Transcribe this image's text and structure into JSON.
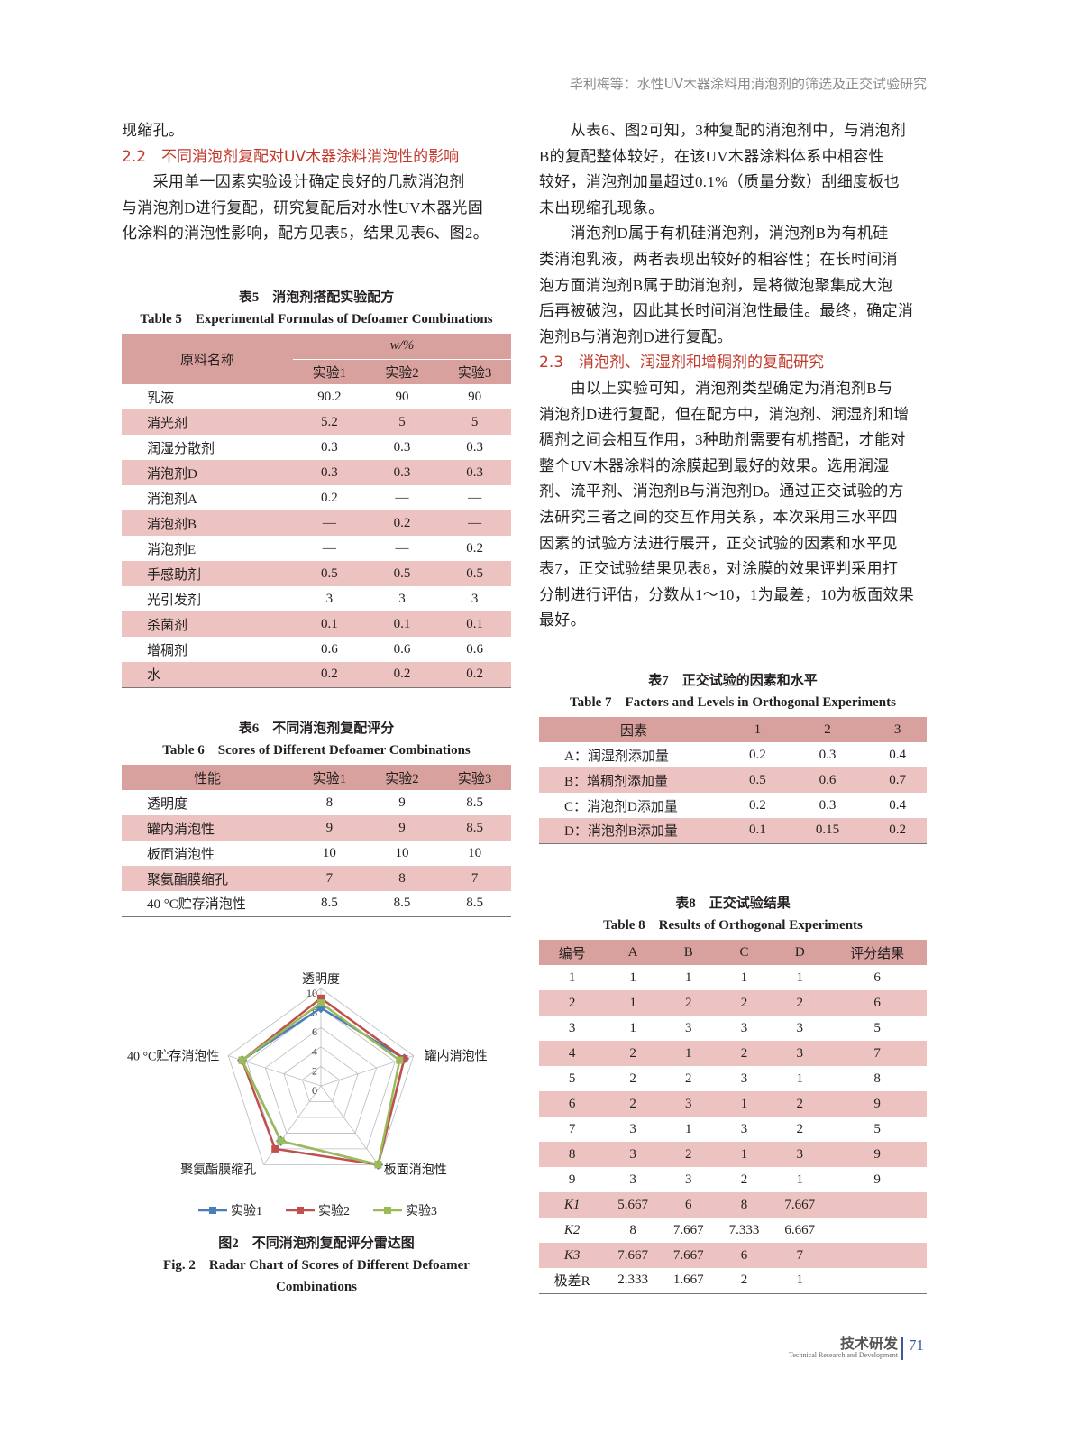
{
  "header": {
    "running_title": "毕利梅等：水性UV木器涂料用消泡剂的筛选及正交试验研究"
  },
  "left": {
    "intro_line": "现缩孔。",
    "section_2_2": "2.2　不同消泡剂复配对UV木器涂料消泡性的影响",
    "para1": [
      "　　采用单一因素实验设计确定良好的几款消泡剂",
      "与消泡剂D进行复配，研究复配后对水性UV木器光固",
      "化涂料的消泡性影响，配方见表5，结果见表6、图2。"
    ]
  },
  "table5": {
    "caption_cn": "表5　消泡剂搭配实验配方",
    "caption_en": "Table 5　Experimental Formulas of Defoamer Combinations",
    "col_name": "原料名称",
    "unit": "w/%",
    "cols": [
      "实验1",
      "实验2",
      "实验3"
    ],
    "rows": [
      [
        "乳液",
        "90.2",
        "90",
        "90"
      ],
      [
        "消光剂",
        "5.2",
        "5",
        "5"
      ],
      [
        "润湿分散剂",
        "0.3",
        "0.3",
        "0.3"
      ],
      [
        "消泡剂D",
        "0.3",
        "0.3",
        "0.3"
      ],
      [
        "消泡剂A",
        "0.2",
        "—",
        "—"
      ],
      [
        "消泡剂B",
        "—",
        "0.2",
        "—"
      ],
      [
        "消泡剂E",
        "—",
        "—",
        "0.2"
      ],
      [
        "手感助剂",
        "0.5",
        "0.5",
        "0.5"
      ],
      [
        "光引发剂",
        "3",
        "3",
        "3"
      ],
      [
        "杀菌剂",
        "0.1",
        "0.1",
        "0.1"
      ],
      [
        "增稠剂",
        "0.6",
        "0.6",
        "0.6"
      ],
      [
        "水",
        "0.2",
        "0.2",
        "0.2"
      ]
    ]
  },
  "table6": {
    "caption_cn": "表6　不同消泡剂复配评分",
    "caption_en": "Table 6　Scores of Different Defoamer Combinations",
    "head": [
      "性能",
      "实验1",
      "实验2",
      "实验3"
    ],
    "rows": [
      [
        "透明度",
        "8",
        "9",
        "8.5"
      ],
      [
        "罐内消泡性",
        "9",
        "9",
        "8.5"
      ],
      [
        "板面消泡性",
        "10",
        "10",
        "10"
      ],
      [
        "聚氨酯膜缩孔",
        "7",
        "8",
        "7"
      ],
      [
        "40 °C贮存消泡性",
        "8.5",
        "8.5",
        "8.5"
      ]
    ]
  },
  "chart_data": {
    "type": "radar",
    "axes": [
      "透明度",
      "罐内消泡性",
      "板面消泡性",
      "聚氨酯膜缩孔",
      "40 °C贮存消泡性"
    ],
    "ticks": [
      "0",
      "2",
      "4",
      "6",
      "8",
      "10"
    ],
    "range": [
      0,
      10
    ],
    "series": [
      {
        "name": "实验1",
        "values": [
          8,
          9,
          10,
          7,
          8.5
        ],
        "color": "#4a7ebb"
      },
      {
        "name": "实验2",
        "values": [
          9,
          9,
          10,
          8,
          8.5
        ],
        "color": "#c0504d"
      },
      {
        "name": "实验3",
        "values": [
          8.5,
          8.5,
          10,
          7,
          8.5
        ],
        "color": "#9bbb59"
      }
    ],
    "legend": "bottom",
    "caption_cn": "图2　不同消泡剂复配评分雷达图",
    "caption_en": "Fig. 2　Radar Chart of Scores of Different Defoamer Combinations"
  },
  "right": {
    "para1": [
      "　　从表6、图2可知，3种复配的消泡剂中，与消泡剂",
      "B的复配整体较好，在该UV木器涂料体系中相容性",
      "较好，消泡剂加量超过0.1%（质量分数）刮细度板也",
      "未出现缩孔现象。"
    ],
    "para2": [
      "　　消泡剂D属于有机硅消泡剂，消泡剂B为有机硅",
      "类消泡乳液，两者表现出较好的相容性；在长时间消",
      "泡方面消泡剂B属于助消泡剂，是将微泡聚集成大泡",
      "后再被破泡，因此其长时间消泡性最佳。最终，确定消",
      "泡剂B与消泡剂D进行复配。"
    ],
    "section_2_3": "2.3　消泡剂、润湿剂和增稠剂的复配研究",
    "para3": [
      "　　由以上实验可知，消泡剂类型确定为消泡剂B与",
      "消泡剂D进行复配，但在配方中，消泡剂、润湿剂和增",
      "稠剂之间会相互作用，3种助剂需要有机搭配，才能对",
      "整个UV木器涂料的涂膜起到最好的效果。选用润湿",
      "剂、流平剂、消泡剂B与消泡剂D。通过正交试验的方",
      "法研究三者之间的交互作用关系，本次采用三水平四",
      "因素的试验方法进行展开，正交试验的因素和水平见",
      "表7，正交试验结果见表8，对涂膜的效果评判采用打",
      "分制进行评估，分数从1～10，1为最差，10为板面效果",
      "最好。"
    ]
  },
  "table7": {
    "caption_cn": "表7　正交试验的因素和水平",
    "caption_en": "Table 7　Factors and Levels in Orthogonal Experiments",
    "head": [
      "因素",
      "1",
      "2",
      "3"
    ],
    "rows": [
      [
        "A：润湿剂添加量",
        "0.2",
        "0.3",
        "0.4"
      ],
      [
        "B：增稠剂添加量",
        "0.5",
        "0.6",
        "0.7"
      ],
      [
        "C：消泡剂D添加量",
        "0.2",
        "0.3",
        "0.4"
      ],
      [
        "D：消泡剂B添加量",
        "0.1",
        "0.15",
        "0.2"
      ]
    ]
  },
  "table8": {
    "caption_cn": "表8　正交试验结果",
    "caption_en": "Table 8　Results of Orthogonal Experiments",
    "head": [
      "编号",
      "A",
      "B",
      "C",
      "D",
      "评分结果"
    ],
    "rows": [
      [
        "1",
        "1",
        "1",
        "1",
        "1",
        "6"
      ],
      [
        "2",
        "1",
        "2",
        "2",
        "2",
        "6"
      ],
      [
        "3",
        "1",
        "3",
        "3",
        "3",
        "5"
      ],
      [
        "4",
        "2",
        "1",
        "2",
        "3",
        "7"
      ],
      [
        "5",
        "2",
        "2",
        "3",
        "1",
        "8"
      ],
      [
        "6",
        "2",
        "3",
        "1",
        "2",
        "9"
      ],
      [
        "7",
        "3",
        "1",
        "3",
        "2",
        "5"
      ],
      [
        "8",
        "3",
        "2",
        "1",
        "3",
        "9"
      ],
      [
        "9",
        "3",
        "3",
        "2",
        "1",
        "9"
      ],
      [
        "K1",
        "5.667",
        "6",
        "8",
        "7.667",
        ""
      ],
      [
        "K2",
        "8",
        "7.667",
        "7.333",
        "6.667",
        ""
      ],
      [
        "K3",
        "7.667",
        "7.667",
        "6",
        "7",
        ""
      ],
      [
        "极差R",
        "2.333",
        "1.667",
        "2",
        "1",
        ""
      ]
    ]
  },
  "footer": {
    "section": "技术研发",
    "section_en": "Technical Research and Development",
    "page": "71"
  }
}
